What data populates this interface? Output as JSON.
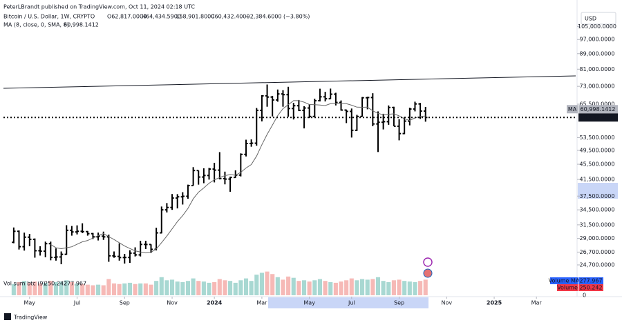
{
  "header": {
    "published": "PeterLBrandt published on TradingView.com, Oct 11, 2024 02:18 UTC",
    "symbol": "Bitcoin / U.S. Dollar, 1W, CRYPTO",
    "ohlc": [
      "O62,817.0000",
      "H64,434.5900",
      "L58,901.8000",
      "C60,432.4000"
    ],
    "change": "−2,384.6000 (−3.80%)",
    "currency": "USD",
    "brand": "TradingView"
  },
  "chart_data": {
    "type": "ohlc",
    "log_scale": true,
    "bar_color": "#000000",
    "xlim": [
      -2.6,
      106.7
    ],
    "xticks": [
      {
        "value": 3,
        "label": "May"
      },
      {
        "value": 12,
        "label": "Jul"
      },
      {
        "value": 21,
        "label": "Sep"
      },
      {
        "value": 30,
        "label": "Nov"
      },
      {
        "value": 38,
        "label": "2024"
      },
      {
        "value": 47,
        "label": "Mar"
      },
      {
        "value": 56,
        "label": "May"
      },
      {
        "value": 64,
        "label": "Jul"
      },
      {
        "value": 73,
        "label": "Sep"
      },
      {
        "value": 82,
        "label": "Nov"
      },
      {
        "value": 91,
        "label": "2025"
      },
      {
        "value": 99,
        "label": "Mar"
      }
    ],
    "ylim": [
      23100,
      120700
    ],
    "yticks": [
      {
        "value": 105000,
        "label": "105,000.0000"
      },
      {
        "value": 97000,
        "label": "97,000.0000"
      },
      {
        "value": 89000,
        "label": "89,000.0000"
      },
      {
        "value": 81000,
        "label": "81,000.0000"
      },
      {
        "value": 73000,
        "label": "73,000.0000"
      },
      {
        "value": 65500,
        "label": "65,500.0000"
      },
      {
        "value": 53500,
        "label": "53,500.0000"
      },
      {
        "value": 49500,
        "label": "49,500.0000"
      },
      {
        "value": 45500,
        "label": "45,500.0000"
      },
      {
        "value": 41500,
        "label": "41,500.0000"
      },
      {
        "value": 37500,
        "label": "37,500.0000"
      },
      {
        "value": 34500,
        "label": "34,500.0000"
      },
      {
        "value": 31500,
        "label": "31,500.0000"
      },
      {
        "value": 29000,
        "label": "29,000.0000"
      },
      {
        "value": 26700,
        "label": "26,700.0000"
      },
      {
        "value": 24700,
        "label": "24,700.0000"
      }
    ],
    "open": [
      28330,
      30290,
      27590,
      29230,
      28850,
      26920,
      26850,
      28100,
      25850,
      25920,
      26340,
      30470,
      30170,
      30290,
      30230,
      29860,
      29290,
      29410,
      29280,
      26100,
      26010,
      25830,
      25840,
      26530,
      26250,
      27970,
      27960,
      27150,
      30000,
      34500,
      35000,
      37060,
      37340,
      37460,
      39970,
      43800,
      42100,
      42500,
      44180,
      43900,
      41700,
      41580,
      42000,
      42600,
      48300,
      51600,
      51700,
      63100,
      68900,
      68400,
      67200,
      69700,
      69400,
      63800,
      64900,
      63100,
      64000,
      60800,
      66900,
      68500,
      67700,
      69600,
      66200,
      63200,
      62700,
      55900,
      60800,
      68100,
      68200,
      58100,
      58700,
      58900,
      64200,
      57300,
      54800,
      59100,
      63600,
      65600,
      62817
    ],
    "high": [
      31000,
      30440,
      30040,
      29820,
      29000,
      27660,
      28450,
      28450,
      27300,
      26800,
      31430,
      31280,
      31400,
      31800,
      30350,
      29990,
      30050,
      30230,
      29680,
      26800,
      28150,
      26400,
      27000,
      27480,
      28600,
      28600,
      27980,
      30950,
      35200,
      35950,
      37980,
      37950,
      38400,
      40200,
      44700,
      43800,
      44400,
      44500,
      45900,
      48970,
      43500,
      42200,
      43850,
      48600,
      52800,
      52900,
      64000,
      69200,
      73800,
      68900,
      71600,
      71300,
      72800,
      66000,
      67200,
      64700,
      65500,
      67700,
      71950,
      70600,
      72000,
      70200,
      67000,
      63400,
      63800,
      61400,
      68400,
      68500,
      70000,
      62700,
      61800,
      65000,
      64500,
      59800,
      60600,
      64100,
      66500,
      66000,
      64434.59
    ],
    "low": [
      28170,
      27120,
      26940,
      27680,
      25810,
      26140,
      25870,
      25400,
      25350,
      24800,
      26260,
      29500,
      29720,
      29950,
      29500,
      28900,
      28650,
      28750,
      25170,
      25800,
      25350,
      24900,
      25000,
      26000,
      26000,
      27200,
      26550,
      26970,
      29900,
      33950,
      34500,
      34800,
      35630,
      36900,
      39970,
      40200,
      40550,
      41450,
      40750,
      41500,
      40270,
      38500,
      41900,
      42250,
      47700,
      50600,
      50900,
      59000,
      64500,
      60800,
      66500,
      64500,
      60700,
      59700,
      62800,
      56550,
      60200,
      60600,
      66600,
      66600,
      67600,
      65000,
      63000,
      58400,
      53500,
      55700,
      60700,
      63500,
      57300,
      49000,
      56200,
      57800,
      57300,
      52600,
      54600,
      57600,
      62700,
      59900,
      58901.8
    ],
    "close": [
      30290,
      27590,
      29230,
      28850,
      26920,
      26850,
      28100,
      25850,
      25920,
      26340,
      30470,
      30170,
      30290,
      30230,
      29860,
      29290,
      29410,
      29280,
      26100,
      26010,
      25830,
      25840,
      26530,
      26250,
      27970,
      27960,
      27150,
      30000,
      34500,
      35000,
      37060,
      37340,
      37460,
      39970,
      43800,
      42100,
      42500,
      44180,
      43900,
      41700,
      41580,
      42000,
      42600,
      48300,
      51600,
      51700,
      63100,
      68900,
      68400,
      67200,
      69700,
      69400,
      63800,
      64900,
      63100,
      64000,
      60800,
      66900,
      68500,
      67700,
      69600,
      66200,
      63200,
      62700,
      55900,
      60800,
      68100,
      68200,
      58100,
      58700,
      58900,
      64200,
      57300,
      54800,
      59100,
      63600,
      65600,
      62817,
      60432.4
    ],
    "last_price_label": "60,432.4000",
    "ma": {
      "name": "MA",
      "title": "MA (8, close, 0, SMA, 8)",
      "period": 8,
      "value": 60998.1412,
      "label": "60,998.1412",
      "color": "#666666"
    },
    "volume": {
      "title": "Vol sum btc (9)",
      "up_color": "#a8d8d2",
      "down_color": "#f6b9b6",
      "vlim": [
        0,
        420
      ],
      "vticks": [
        0
      ],
      "values": [
        180,
        210,
        230,
        200,
        220,
        190,
        200,
        230,
        210,
        220,
        240,
        210,
        190,
        180,
        170,
        160,
        170,
        160,
        260,
        190,
        180,
        190,
        200,
        180,
        190,
        190,
        170,
        230,
        290,
        240,
        250,
        220,
        210,
        230,
        270,
        230,
        220,
        200,
        210,
        260,
        240,
        230,
        200,
        240,
        270,
        230,
        330,
        360,
        380,
        340,
        290,
        250,
        300,
        280,
        230,
        240,
        220,
        240,
        260,
        230,
        210,
        200,
        220,
        240,
        270,
        240,
        260,
        250,
        260,
        290,
        230,
        210,
        240,
        250,
        230,
        220,
        210,
        230,
        250.242
      ],
      "last": 250.242,
      "last_label": "250.242",
      "ma_value": 277.967,
      "ma_label": "277.967",
      "last_name": "Volume",
      "ma_name": "Volume MA",
      "ma_color": "#2962ff",
      "last_color": "#f23645"
    }
  }
}
